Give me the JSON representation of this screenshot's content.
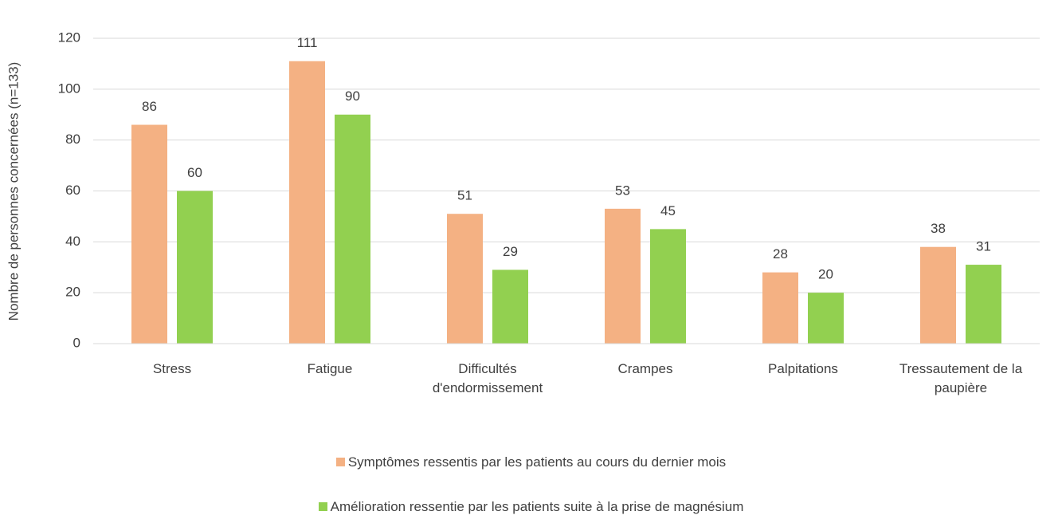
{
  "chart_data": {
    "type": "bar",
    "ylabel": "Nombre de personnes concernées (n=133)",
    "categories": [
      "Stress",
      "Fatigue",
      "Difficultés d'endormissement",
      "Crampes",
      "Palpitations",
      "Tressautement de la paupière"
    ],
    "series": [
      {
        "name": "Symptômes ressentis par les patients au cours du dernier mois",
        "color": "#f4b183",
        "values": [
          86,
          111,
          51,
          53,
          28,
          38
        ]
      },
      {
        "name": "Amélioration ressentie par les patients suite à la prise de magnésium",
        "color": "#92d050",
        "values": [
          60,
          90,
          29,
          45,
          20,
          31
        ]
      }
    ],
    "ylim": [
      0,
      120
    ],
    "yticks": [
      0,
      20,
      40,
      60,
      80,
      100,
      120
    ],
    "grid": true,
    "legend": "bottom"
  }
}
